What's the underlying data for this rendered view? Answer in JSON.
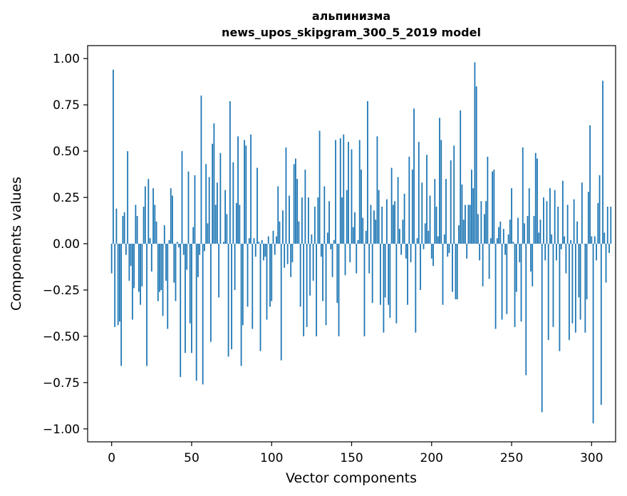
{
  "chart_data": {
    "type": "bar",
    "title_line1": "альпинизма",
    "title_line2": "news_upos_skipgram_300_5_2019 model",
    "xlabel": "Vector components",
    "ylabel": "Components values",
    "xlim": [
      -15,
      315
    ],
    "ylim": [
      -1.07,
      1.07
    ],
    "xticks": [
      0,
      50,
      100,
      150,
      200,
      250,
      300
    ],
    "yticks": [
      -1.0,
      -0.75,
      -0.5,
      -0.25,
      0.0,
      0.25,
      0.5,
      0.75,
      1.0
    ],
    "xtick_labels": [
      "0",
      "50",
      "100",
      "150",
      "200",
      "250",
      "300"
    ],
    "ytick_labels": [
      "−1.00",
      "−0.75",
      "−0.50",
      "−0.25",
      "0.00",
      "0.25",
      "0.50",
      "0.75",
      "1.00"
    ],
    "bar_color": "#1f77b4",
    "grid": false,
    "values": [
      -0.16,
      0.94,
      -0.45,
      0.19,
      -0.44,
      -0.42,
      -0.66,
      0.15,
      0.17,
      -0.06,
      0.5,
      -0.2,
      -0.12,
      -0.41,
      -0.24,
      0.21,
      0.15,
      -0.26,
      -0.33,
      -0.23,
      0.2,
      0.31,
      -0.66,
      0.35,
      0.03,
      -0.15,
      0.3,
      0.21,
      0.12,
      -0.31,
      -0.26,
      -0.25,
      -0.39,
      0.1,
      -0.2,
      -0.46,
      0.02,
      0.3,
      0.26,
      -0.21,
      -0.31,
      0.01,
      -0.02,
      -0.72,
      0.5,
      -0.06,
      -0.59,
      -0.14,
      0.39,
      -0.43,
      -0.59,
      0.09,
      0.37,
      -0.74,
      -0.18,
      -0.06,
      0.8,
      -0.76,
      -0.04,
      0.43,
      0.11,
      0.36,
      -0.53,
      0.54,
      0.65,
      0.21,
      0.33,
      -0.29,
      0.49,
      0.0,
      0.01,
      0.29,
      0.16,
      -0.61,
      0.77,
      -0.57,
      0.44,
      -0.25,
      0.22,
      0.58,
      0.21,
      -0.66,
      -0.44,
      0.56,
      0.53,
      -0.34,
      0.03,
      0.59,
      -0.46,
      0.03,
      -0.07,
      0.41,
      0.01,
      -0.58,
      0.02,
      -0.09,
      -0.07,
      -0.41,
      0.04,
      -0.34,
      -0.31,
      0.07,
      -0.06,
      0.04,
      0.31,
      0.12,
      -0.63,
      0.18,
      -0.13,
      0.52,
      -0.11,
      0.26,
      -0.18,
      -0.1,
      0.43,
      0.46,
      0.35,
      0.12,
      -0.34,
      0.25,
      -0.5,
      0.4,
      -0.45,
      0.25,
      -0.28,
      0.05,
      -0.2,
      0.2,
      -0.5,
      0.25,
      0.61,
      -0.07,
      -0.31,
      0.31,
      -0.44,
      0.06,
      0.23,
      -0.03,
      -0.18,
      0.02,
      0.56,
      -0.32,
      -0.5,
      0.57,
      0.25,
      0.59,
      -0.17,
      0.29,
      0.55,
      -0.1,
      0.51,
      0.09,
      0.17,
      -0.16,
      0.02,
      0.56,
      0.4,
      0.14,
      -0.5,
      0.07,
      0.77,
      -0.16,
      0.21,
      -0.32,
      0.18,
      0.13,
      0.58,
      0.29,
      -0.33,
      0.2,
      -0.48,
      -0.29,
      0.24,
      -0.33,
      -0.4,
      0.41,
      0.21,
      0.23,
      -0.43,
      0.36,
      0.08,
      -0.06,
      0.13,
      0.27,
      -0.08,
      -0.33,
      0.47,
      -0.1,
      0.4,
      0.73,
      -0.48,
      0.03,
      0.55,
      -0.25,
      0.33,
      -0.03,
      0.11,
      0.48,
      0.07,
      0.26,
      -0.08,
      -0.12,
      0.35,
      0.2,
      0.04,
      0.68,
      0.56,
      -0.33,
      0.05,
      0.35,
      -0.07,
      -0.05,
      0.45,
      -0.26,
      0.53,
      -0.3,
      -0.3,
      0.1,
      0.72,
      0.32,
      0.13,
      0.21,
      -0.08,
      0.21,
      0.21,
      0.4,
      0.3,
      0.98,
      0.85,
      0.16,
      -0.09,
      0.23,
      -0.23,
      0.16,
      0.23,
      0.47,
      -0.19,
      0.03,
      0.39,
      0.4,
      -0.46,
      0.03,
      0.09,
      0.12,
      -0.41,
      0.08,
      -0.06,
      -0.38,
      0.05,
      0.13,
      0.3,
      0.01,
      -0.45,
      -0.26,
      0.14,
      -0.1,
      -0.42,
      0.52,
      0.11,
      -0.71,
      0.15,
      0.3,
      -0.15,
      -0.23,
      0.15,
      0.49,
      0.46,
      0.06,
      0.13,
      -0.91,
      0.25,
      -0.09,
      0.23,
      -0.52,
      0.3,
      0.05,
      -0.45,
      0.29,
      -0.09,
      0.2,
      -0.58,
      -0.03,
      0.34,
      0.04,
      -0.16,
      0.21,
      -0.52,
      0.02,
      -0.43,
      0.24,
      -0.48,
      0.12,
      -0.29,
      -0.41,
      0.33,
      0.0,
      -0.48,
      -0.3,
      0.28,
      0.64,
      0.04,
      -0.97,
      0.04,
      -0.09,
      0.22,
      0.37,
      -0.87,
      0.88,
      0.06,
      -0.21,
      0.2,
      -0.05,
      0.2
    ]
  }
}
